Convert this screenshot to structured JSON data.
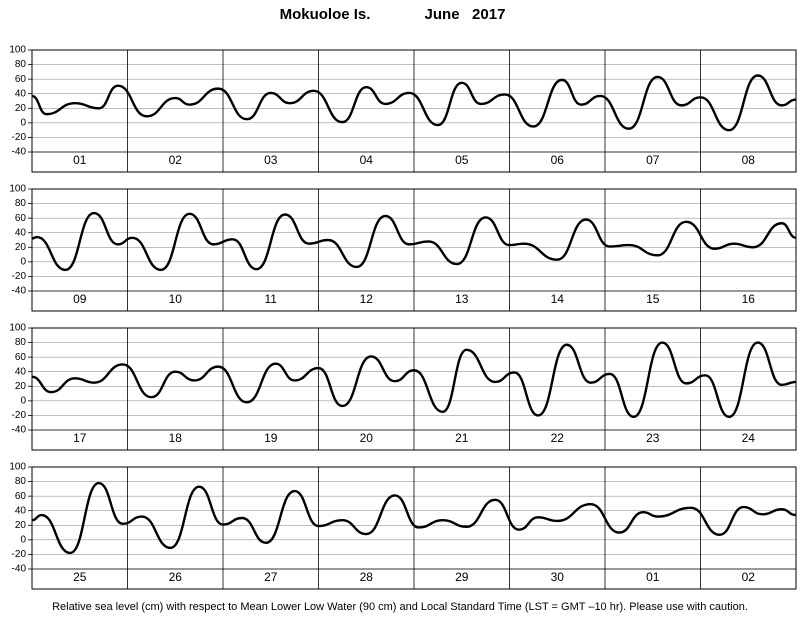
{
  "title": {
    "station": "Mokuoloe Is.",
    "date": "June   2017"
  },
  "footnote": "Relative sea level (cm) with respect to Mean Lower Low Water (90 cm) and Local Standard Time (LST = GMT –10 hr). Please use with caution.",
  "chart_data": [
    {
      "type": "line",
      "categories": [
        "01",
        "02",
        "03",
        "04",
        "05",
        "06",
        "07",
        "08"
      ],
      "xlim": [
        0,
        8
      ],
      "ylim": [
        -40,
        100
      ],
      "yticks": [
        -40,
        -20,
        0,
        20,
        40,
        60,
        80,
        100
      ],
      "grid": true,
      "series": [
        {
          "color": "#000000",
          "x": [
            0,
            0.15,
            0.45,
            0.7,
            0.9,
            1.2,
            1.5,
            1.65,
            1.95,
            2.25,
            2.5,
            2.7,
            2.95,
            3.25,
            3.5,
            3.7,
            3.95,
            4.25,
            4.5,
            4.7,
            4.95,
            5.25,
            5.55,
            5.75,
            5.95,
            6.25,
            6.55,
            6.8,
            7.0,
            7.3,
            7.6,
            7.85,
            8
          ],
          "values": [
            37,
            12,
            27,
            20,
            51,
            9,
            34,
            25,
            47,
            5,
            41,
            27,
            44,
            1,
            49,
            26,
            41,
            -3,
            55,
            26,
            39,
            -5,
            59,
            25,
            37,
            -8,
            63,
            24,
            35,
            -10,
            65,
            24,
            32
          ]
        }
      ]
    },
    {
      "type": "line",
      "categories": [
        "09",
        "10",
        "11",
        "12",
        "13",
        "14",
        "15",
        "16"
      ],
      "xlim": [
        0,
        8
      ],
      "ylim": [
        -40,
        100
      ],
      "yticks": [
        -40,
        -20,
        0,
        20,
        40,
        60,
        80,
        100
      ],
      "grid": true,
      "series": [
        {
          "color": "#000000",
          "x": [
            0,
            0.05,
            0.35,
            0.65,
            0.9,
            1.05,
            1.35,
            1.65,
            1.9,
            2.1,
            2.35,
            2.65,
            2.9,
            3.1,
            3.4,
            3.7,
            3.95,
            4.15,
            4.45,
            4.75,
            5.0,
            5.15,
            5.5,
            5.8,
            6.05,
            6.25,
            6.55,
            6.85,
            7.15,
            7.35,
            7.55,
            7.85,
            8
          ],
          "values": [
            32,
            34,
            -11,
            67,
            24,
            33,
            -11,
            66,
            24,
            31,
            -10,
            65,
            25,
            30,
            -7,
            63,
            24,
            28,
            -3,
            61,
            23,
            25,
            3,
            58,
            21,
            23,
            9,
            55,
            18,
            25,
            20,
            53,
            33
          ]
        }
      ]
    },
    {
      "type": "line",
      "categories": [
        "17",
        "18",
        "19",
        "20",
        "21",
        "22",
        "23",
        "24"
      ],
      "xlim": [
        0,
        8
      ],
      "ylim": [
        -40,
        100
      ],
      "yticks": [
        -40,
        -20,
        0,
        20,
        40,
        60,
        80,
        100
      ],
      "grid": true,
      "series": [
        {
          "color": "#000000",
          "x": [
            0,
            0.2,
            0.45,
            0.65,
            0.95,
            1.25,
            1.5,
            1.7,
            1.95,
            2.25,
            2.55,
            2.75,
            3.0,
            3.25,
            3.55,
            3.8,
            4.0,
            4.3,
            4.55,
            4.85,
            5.05,
            5.3,
            5.6,
            5.85,
            6.05,
            6.3,
            6.6,
            6.85,
            7.05,
            7.3,
            7.6,
            7.85,
            8
          ],
          "values": [
            33,
            12,
            31,
            25,
            50,
            5,
            40,
            28,
            47,
            -2,
            51,
            28,
            45,
            -7,
            61,
            27,
            42,
            -15,
            70,
            26,
            39,
            -20,
            77,
            25,
            37,
            -22,
            80,
            24,
            35,
            -22,
            80,
            22,
            26
          ]
        }
      ]
    },
    {
      "type": "line",
      "categories": [
        "25",
        "26",
        "27",
        "28",
        "29",
        "30",
        "01",
        "02"
      ],
      "xlim": [
        0,
        8
      ],
      "ylim": [
        -40,
        100
      ],
      "yticks": [
        -40,
        -20,
        0,
        20,
        40,
        60,
        80,
        100
      ],
      "grid": true,
      "series": [
        {
          "color": "#000000",
          "x": [
            0,
            0.1,
            0.4,
            0.7,
            0.95,
            1.15,
            1.45,
            1.75,
            2.0,
            2.2,
            2.45,
            2.75,
            3.0,
            3.25,
            3.5,
            3.8,
            4.05,
            4.3,
            4.55,
            4.85,
            5.1,
            5.3,
            5.5,
            5.85,
            6.15,
            6.4,
            6.55,
            6.9,
            7.2,
            7.45,
            7.65,
            7.85,
            8
          ],
          "values": [
            27,
            34,
            -18,
            78,
            22,
            32,
            -11,
            73,
            21,
            30,
            -4,
            67,
            19,
            27,
            8,
            61,
            17,
            27,
            18,
            55,
            14,
            31,
            26,
            49,
            10,
            38,
            32,
            44,
            7,
            45,
            35,
            42,
            34
          ]
        }
      ]
    }
  ]
}
